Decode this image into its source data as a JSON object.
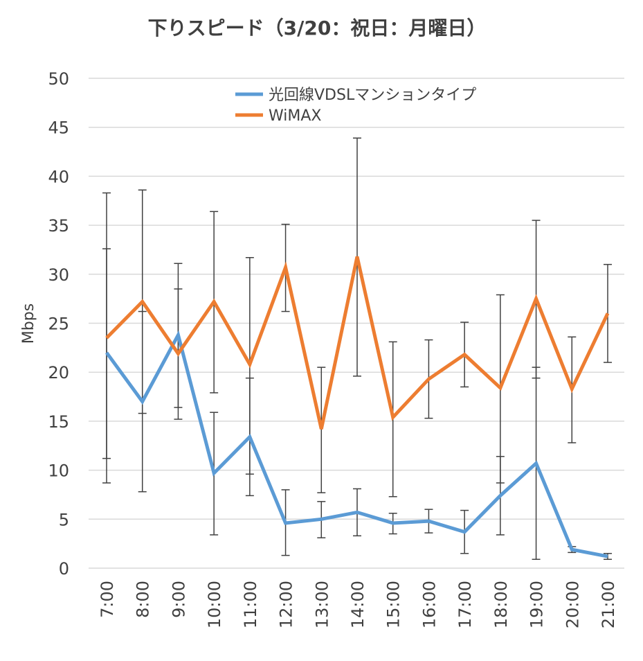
{
  "chart_data": {
    "type": "line",
    "title": "下りスピード（3/20：祝日：月曜日）",
    "ylabel": "Mbps",
    "xlabel": "",
    "ylim": [
      0,
      50
    ],
    "yticks": [
      0,
      5,
      10,
      15,
      20,
      25,
      30,
      35,
      40,
      45,
      50
    ],
    "categories": [
      "7:00",
      "8:00",
      "9:00",
      "10:00",
      "11:00",
      "12:00",
      "13:00",
      "14:00",
      "15:00",
      "16:00",
      "17:00",
      "18:00",
      "19:00",
      "20:00",
      "21:00"
    ],
    "grid": true,
    "legend_position": "top-center",
    "series": [
      {
        "name": "光回線VDSLマンションタイプ",
        "color": "#5B9BD5",
        "values": [
          22.0,
          17.0,
          23.8,
          9.7,
          13.4,
          4.6,
          5.0,
          5.7,
          4.6,
          4.8,
          3.7,
          7.4,
          10.7,
          1.9,
          1.2
        ],
        "error_low": [
          11.2,
          7.8,
          16.4,
          3.4,
          7.4,
          1.3,
          3.1,
          3.3,
          3.5,
          3.6,
          1.5,
          3.4,
          0.9,
          1.6,
          0.9
        ],
        "error_high": [
          32.6,
          26.2,
          31.1,
          15.9,
          19.4,
          8.0,
          6.8,
          8.1,
          5.6,
          6.0,
          5.9,
          11.4,
          20.5,
          2.2,
          1.5
        ]
      },
      {
        "name": "WiMAX",
        "color": "#ED7D31",
        "values": [
          23.5,
          27.2,
          21.9,
          27.2,
          20.8,
          30.7,
          14.2,
          31.8,
          15.4,
          19.3,
          21.8,
          18.4,
          27.5,
          18.3,
          26.0
        ],
        "error_low": [
          8.7,
          15.8,
          15.2,
          17.9,
          9.6,
          26.2,
          7.7,
          19.6,
          7.3,
          15.3,
          18.5,
          8.7,
          19.4,
          12.8,
          21.0
        ],
        "error_high": [
          38.3,
          38.6,
          28.5,
          36.4,
          31.7,
          35.1,
          20.5,
          43.9,
          23.1,
          23.3,
          25.1,
          27.9,
          35.5,
          23.6,
          31.0
        ]
      }
    ]
  }
}
